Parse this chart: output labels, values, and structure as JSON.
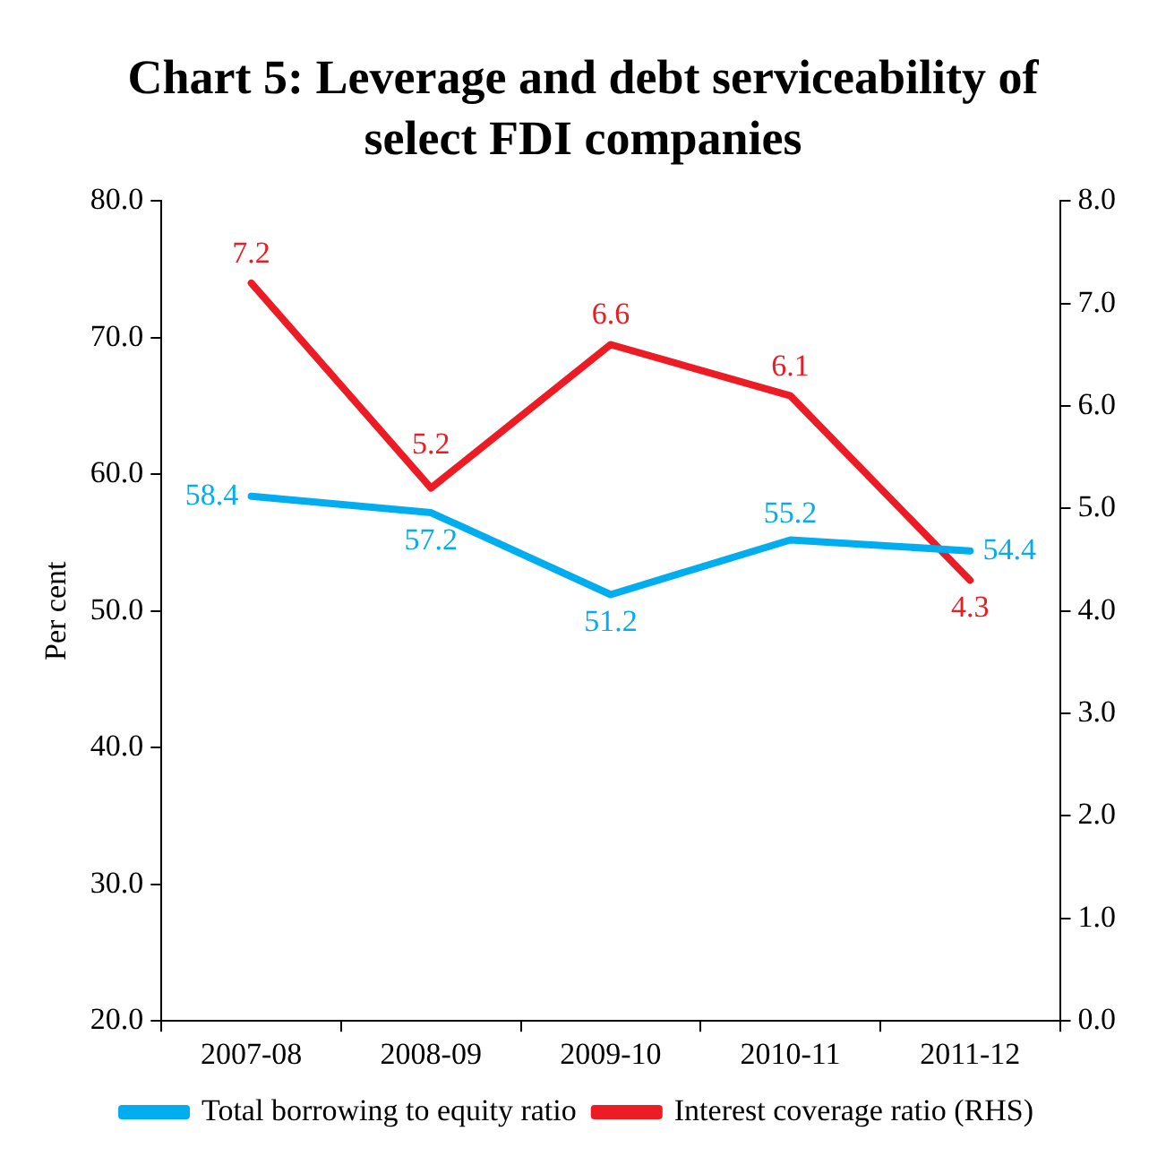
{
  "chart_data": {
    "type": "line",
    "title": "Chart 5: Leverage and debt serviceability of select FDI companies",
    "ylabel": "Per cent",
    "categories": [
      "2007-08",
      "2008-09",
      "2009-10",
      "2010-11",
      "2011-12"
    ],
    "series": [
      {
        "name": "Total borrowing to equity ratio",
        "color": "#00aeef",
        "values": [
          58.4,
          57.2,
          51.2,
          55.2,
          54.4
        ]
      },
      {
        "name": "Interest coverage ratio (RHS)",
        "color": "#ed1c24",
        "values": [
          7.2,
          5.2,
          6.6,
          6.1,
          4.3
        ],
        "axis": "y2"
      }
    ],
    "ylim": [
      20,
      80
    ],
    "yticks": [
      {
        "value": 20,
        "label": "20.0"
      },
      {
        "value": 30,
        "label": "30.0"
      },
      {
        "value": 40,
        "label": "40.0"
      },
      {
        "value": 50,
        "label": "50.0"
      },
      {
        "value": 60,
        "label": "60.0"
      },
      {
        "value": 70,
        "label": "70.0"
      },
      {
        "value": 80,
        "label": "80.0"
      }
    ],
    "y2lim": [
      0,
      8
    ],
    "y2ticks": [
      {
        "value": 0,
        "label": "0.0"
      },
      {
        "value": 1,
        "label": "1.0"
      },
      {
        "value": 2,
        "label": "2.0"
      },
      {
        "value": 3,
        "label": "3.0"
      },
      {
        "value": 4,
        "label": "4.0"
      },
      {
        "value": 5,
        "label": "5.0"
      },
      {
        "value": 6,
        "label": "6.0"
      },
      {
        "value": 7,
        "label": "7.0"
      },
      {
        "value": 8,
        "label": "8.0"
      }
    ],
    "data_labels": true,
    "legend": "bottom",
    "grid": false,
    "marker": "none",
    "line_style": "solid"
  }
}
